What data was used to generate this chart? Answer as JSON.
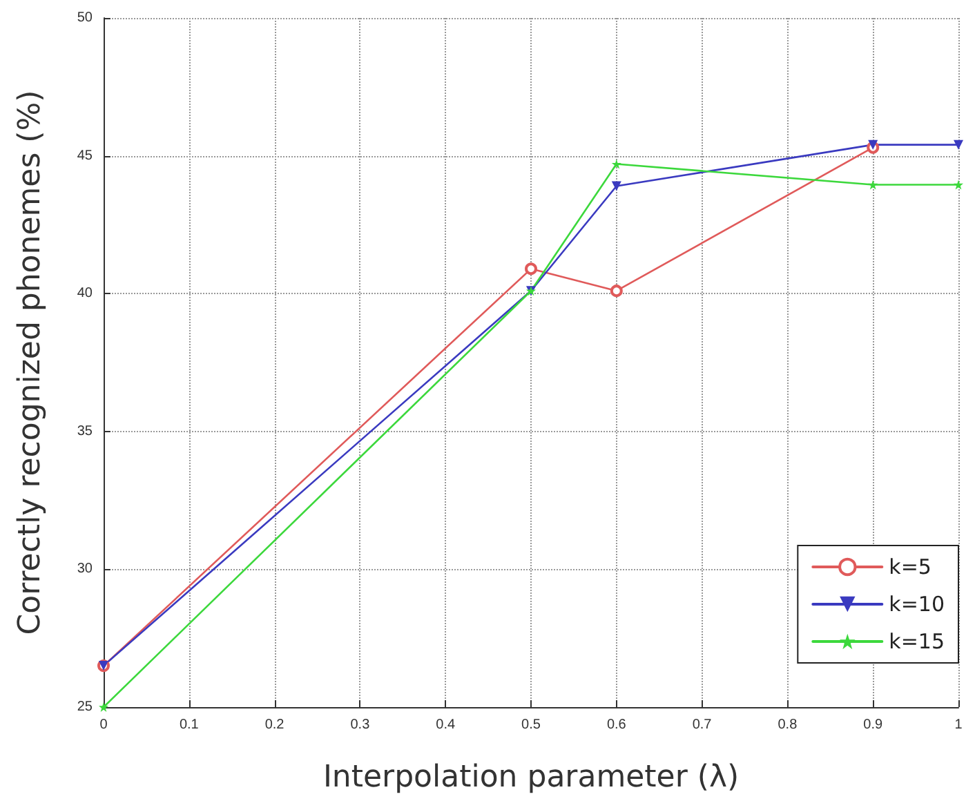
{
  "chart_data": {
    "type": "line",
    "xlabel": "Interpolation parameter (λ)",
    "ylabel": "Correctly recognized phonemes (%)",
    "x": [
      0,
      0.5,
      0.6,
      0.9,
      1
    ],
    "series": [
      {
        "name": "k=5",
        "color": "#e05a5a",
        "marker": "circle",
        "values": [
          26.5,
          40.9,
          40.1,
          45.3,
          null
        ]
      },
      {
        "name": "k=10",
        "color": "#3a3ac0",
        "marker": "triangle",
        "values": [
          26.5,
          40.1,
          43.9,
          45.4,
          45.4
        ]
      },
      {
        "name": "k=15",
        "color": "#3cd83c",
        "marker": "star",
        "values": [
          25,
          40.1,
          44.7,
          43.95,
          43.95
        ]
      }
    ],
    "xlim": [
      0,
      1
    ],
    "xticks": [
      0,
      0.1,
      0.2,
      0.3,
      0.4,
      0.5,
      0.6,
      0.7,
      0.8,
      0.9,
      1
    ],
    "ylim": [
      25,
      50
    ],
    "yticks": [
      25,
      30,
      35,
      40,
      45,
      50
    ],
    "grid": true,
    "legend": "bottom right",
    "line_style": "solid"
  }
}
